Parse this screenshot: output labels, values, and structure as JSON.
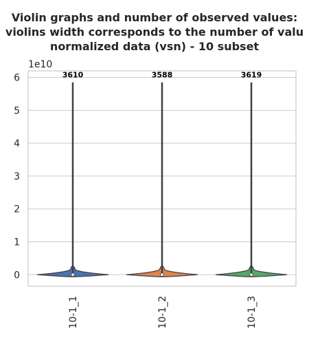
{
  "chart_data": {
    "type": "violin",
    "title_lines": [
      "Violin graphs and number of observed values:",
      "violins width corresponds to the number of valu",
      "normalized data (vsn) - 10 subset"
    ],
    "y_offset_label": "1e10",
    "y_scale": 10000000000,
    "ylim": [
      -0.35,
      6.2
    ],
    "yticks": [
      0,
      1,
      2,
      3,
      4,
      5,
      6
    ],
    "grid": true,
    "categories": [
      "10-1_1",
      "10-1_2",
      "10-1_3"
    ],
    "series": [
      {
        "category": "10-1_1",
        "count": "3610",
        "color": "#4c72b0",
        "max": 5.85,
        "median": 0.0
      },
      {
        "category": "10-1_2",
        "count": "3588",
        "color": "#dd8452",
        "max": 5.85,
        "median": 0.0
      },
      {
        "category": "10-1_3",
        "count": "3619",
        "color": "#55a868",
        "max": 5.85,
        "median": 0.0
      }
    ]
  }
}
